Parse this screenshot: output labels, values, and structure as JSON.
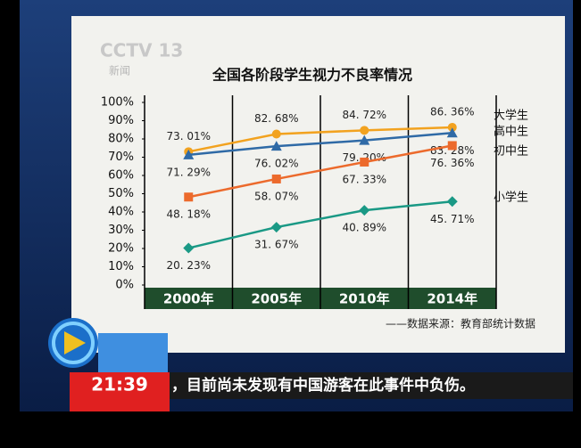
{
  "chart_data": {
    "type": "line",
    "title": "全国各阶段学生视力不良率情况",
    "categories": [
      "2000年",
      "2005年",
      "2010年",
      "2014年"
    ],
    "series": [
      {
        "name": "大学生",
        "color": "#f2a21f",
        "marker": "circle",
        "values": [
          73.01,
          82.68,
          84.72,
          86.36
        ],
        "value_labels": [
          "73. 01%",
          "82. 68%",
          "84. 72%",
          "86. 36%"
        ]
      },
      {
        "name": "高中生",
        "color": "#2f6aa6",
        "marker": "triangle",
        "values": [
          71.29,
          76.02,
          79.2,
          83.28
        ],
        "value_labels": [
          "71. 29%",
          "76. 02%",
          "79. 20%",
          "83. 28%"
        ]
      },
      {
        "name": "初中生",
        "color": "#ec6a2c",
        "marker": "square",
        "values": [
          48.18,
          58.07,
          67.33,
          76.36
        ],
        "value_labels": [
          "48. 18%",
          "58. 07%",
          "67. 33%",
          "76. 36%"
        ]
      },
      {
        "name": "小学生",
        "color": "#1a9985",
        "marker": "diamond",
        "values": [
          20.23,
          31.67,
          40.89,
          45.71
        ],
        "value_labels": [
          "20. 23%",
          "31. 67%",
          "40. 89%",
          "45. 71%"
        ]
      }
    ],
    "ylim": [
      0,
      100
    ],
    "yticks": [
      {
        "value": 0,
        "label": "0%"
      },
      {
        "value": 10,
        "label": "10%"
      },
      {
        "value": 20,
        "label": "20%"
      },
      {
        "value": 30,
        "label": "30%"
      },
      {
        "value": 40,
        "label": "40%"
      },
      {
        "value": 50,
        "label": "50%"
      },
      {
        "value": 60,
        "label": "60%"
      },
      {
        "value": 70,
        "label": "70%"
      },
      {
        "value": 80,
        "label": "80%"
      },
      {
        "value": 90,
        "label": "90%"
      },
      {
        "value": 100,
        "label": "100%"
      }
    ],
    "source": "——数据来源：教育部统计数据"
  },
  "overlay": {
    "logo": "CCTV 13",
    "logo_sub": "新闻",
    "time": "21:39",
    "ticker": "，目前尚未发现有中国游客在此事件中负伤。"
  }
}
